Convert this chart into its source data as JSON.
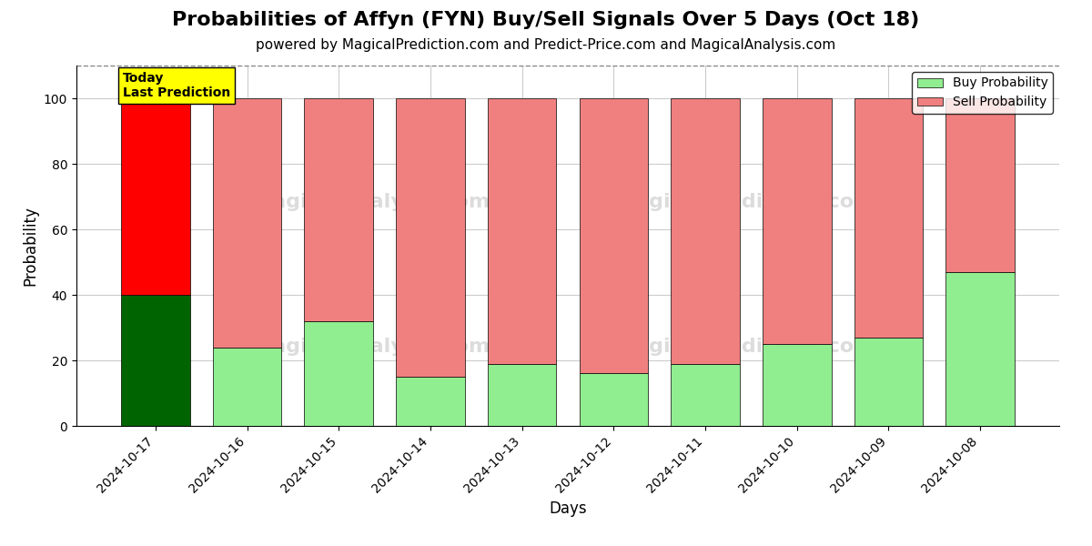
{
  "title": "Probabilities of Affyn (FYN) Buy/Sell Signals Over 5 Days (Oct 18)",
  "subtitle": "powered by MagicalPrediction.com and Predict-Price.com and MagicalAnalysis.com",
  "xlabel": "Days",
  "ylabel": "Probability",
  "dates": [
    "2024-10-17",
    "2024-10-16",
    "2024-10-15",
    "2024-10-14",
    "2024-10-13",
    "2024-10-12",
    "2024-10-11",
    "2024-10-10",
    "2024-10-09",
    "2024-10-08"
  ],
  "buy_values": [
    40,
    24,
    32,
    15,
    19,
    16,
    19,
    25,
    27,
    47
  ],
  "sell_values": [
    60,
    76,
    68,
    85,
    81,
    84,
    81,
    75,
    73,
    53
  ],
  "today_buy_color": "#006400",
  "today_sell_color": "#ff0000",
  "buy_color": "#90ee90",
  "sell_color": "#f08080",
  "today_label_bg": "#ffff00",
  "today_label_text": "Today\nLast Prediction",
  "legend_buy": "Buy Probability",
  "legend_sell": "Sell Probability",
  "ylim": [
    0,
    110
  ],
  "yticks": [
    0,
    20,
    40,
    60,
    80,
    100
  ],
  "dashed_line_y": 110,
  "bg_color": "#ffffff",
  "grid_color": "#cccccc",
  "bar_width": 0.75,
  "title_fontsize": 16,
  "subtitle_fontsize": 11,
  "axis_label_fontsize": 12,
  "tick_fontsize": 10
}
